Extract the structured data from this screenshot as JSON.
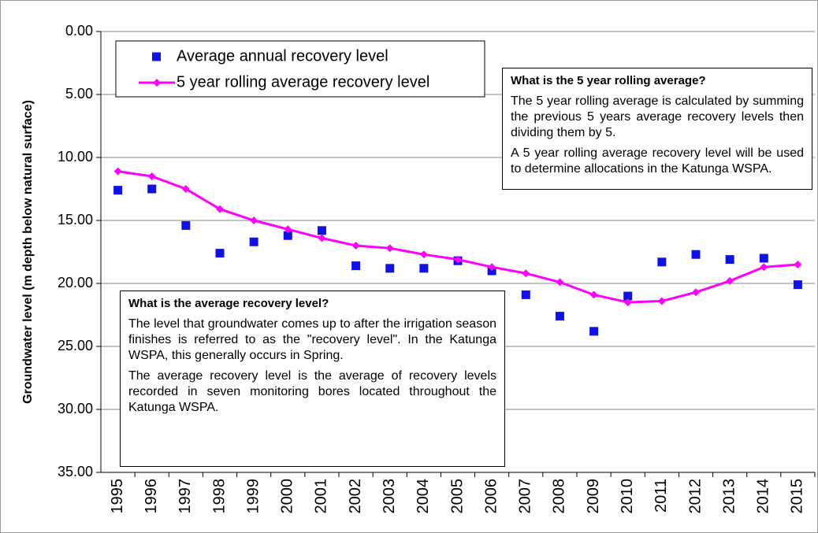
{
  "chart_data": {
    "type": "scatter-line",
    "y_label": "Groundwater level (m depth below natural surface)",
    "categories": [
      "1995",
      "1996",
      "1997",
      "1998",
      "1999",
      "2000",
      "2001",
      "2002",
      "2003",
      "2004",
      "2005",
      "2006",
      "2007",
      "2008",
      "2009",
      "2010",
      "2011",
      "2012",
      "2013",
      "2014",
      "2015"
    ],
    "series": [
      {
        "name": "Average annual recovery level",
        "color": "#1010e8",
        "marker": "square",
        "values": [
          12.6,
          12.5,
          15.4,
          17.6,
          16.7,
          16.2,
          15.8,
          18.6,
          18.8,
          18.8,
          18.2,
          19.0,
          20.9,
          22.6,
          23.8,
          21.0,
          18.3,
          17.7,
          18.1,
          18.0,
          20.1
        ]
      },
      {
        "name": "5 year rolling average recovery level",
        "color": "#ff00ff",
        "marker": "diamond-line",
        "values": [
          11.1,
          11.5,
          12.5,
          14.1,
          15.0,
          15.7,
          16.4,
          17.0,
          17.2,
          17.7,
          18.1,
          18.7,
          19.2,
          19.9,
          20.9,
          21.5,
          21.4,
          20.7,
          19.8,
          18.7,
          18.5
        ]
      }
    ],
    "ylim": [
      0,
      35
    ],
    "y_inverted": true,
    "yticks": [
      {
        "value": 0,
        "label": "0.00"
      },
      {
        "value": 5,
        "label": "5.00"
      },
      {
        "value": 10,
        "label": "10.00"
      },
      {
        "value": 15,
        "label": "15.00"
      },
      {
        "value": 20,
        "label": "20.00"
      },
      {
        "value": 25,
        "label": "25.00"
      },
      {
        "value": 30,
        "label": "30.00"
      },
      {
        "value": 35,
        "label": "35.00"
      }
    ],
    "grid": true,
    "legend": "upper-left",
    "annotations": [
      {
        "title": "What is the 5 year rolling average?",
        "paragraphs": [
          "The 5 year rolling average is calculated by summing the previous 5 years average recovery levels then dividing them by 5.",
          "A 5 year rolling average recovery level will be used to determine allocations in the Katunga WSPA."
        ]
      },
      {
        "title": "What is the average recovery level?",
        "paragraphs": [
          "The level that groundwater comes up to after the irrigation season finishes is referred to as the \"recovery level\".   In the Katunga WSPA, this generally occurs in Spring.",
          "The average recovery level is the average  of recovery levels recorded in seven monitoring bores located throughout the Katunga WSPA."
        ]
      }
    ]
  }
}
